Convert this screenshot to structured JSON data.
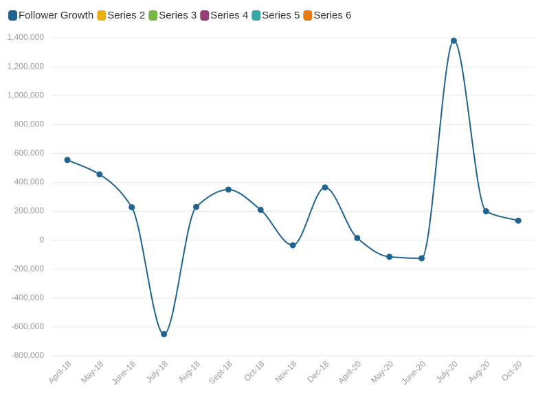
{
  "chart_data": {
    "type": "line",
    "categories": [
      "April-18",
      "May-18",
      "June-18",
      "July-18",
      "Aug-18",
      "Sept-18",
      "Oct-18",
      "Nov-18",
      "Dec-18",
      "April-20",
      "May-20",
      "June-20",
      "July-20",
      "Aug-20",
      "Oct-20"
    ],
    "series": [
      {
        "name": "Follower Growth",
        "color": "#1f6391",
        "values": [
          555000,
          455000,
          228000,
          -650000,
          230000,
          350000,
          210000,
          -35000,
          365000,
          15000,
          -115000,
          -125000,
          1380000,
          200000,
          135000
        ]
      },
      {
        "name": "Series 2",
        "color": "#e8b012",
        "values": [
          null,
          null,
          null,
          null,
          null,
          null,
          null,
          null,
          null,
          null,
          null,
          null,
          null,
          null,
          null
        ]
      },
      {
        "name": "Series 3",
        "color": "#7ab648",
        "values": [
          null,
          null,
          null,
          null,
          null,
          null,
          null,
          null,
          null,
          null,
          null,
          null,
          null,
          null,
          null
        ]
      },
      {
        "name": "Series 4",
        "color": "#993d78",
        "values": [
          null,
          null,
          null,
          null,
          null,
          null,
          null,
          null,
          null,
          null,
          null,
          null,
          null,
          null,
          null
        ]
      },
      {
        "name": "Series 5",
        "color": "#3aa6a6",
        "values": [
          null,
          null,
          null,
          null,
          null,
          null,
          null,
          null,
          null,
          null,
          null,
          null,
          null,
          null,
          null
        ]
      },
      {
        "name": "Series 6",
        "color": "#e57c12",
        "values": [
          null,
          null,
          null,
          null,
          null,
          null,
          null,
          null,
          null,
          null,
          null,
          null,
          null,
          null,
          null
        ]
      }
    ],
    "ylim": [
      -800000,
      1400000
    ],
    "yticks": [
      {
        "value": -800000,
        "label": "-800,000"
      },
      {
        "value": -600000,
        "label": "-600,000"
      },
      {
        "value": -400000,
        "label": "-400,000"
      },
      {
        "value": -200000,
        "label": "-200,000"
      },
      0,
      {
        "value": 200000,
        "label": "200,000"
      },
      {
        "value": 400000,
        "label": "400,000"
      },
      {
        "value": 600000,
        "label": "600,000"
      },
      {
        "value": 800000,
        "label": "800,000"
      },
      {
        "value": 1000000,
        "label": "1,000,000"
      },
      {
        "value": 1200000,
        "label": "1,200,000"
      },
      {
        "value": 1400000,
        "label": "1,400,000"
      }
    ],
    "grid": true,
    "legend": "top"
  }
}
